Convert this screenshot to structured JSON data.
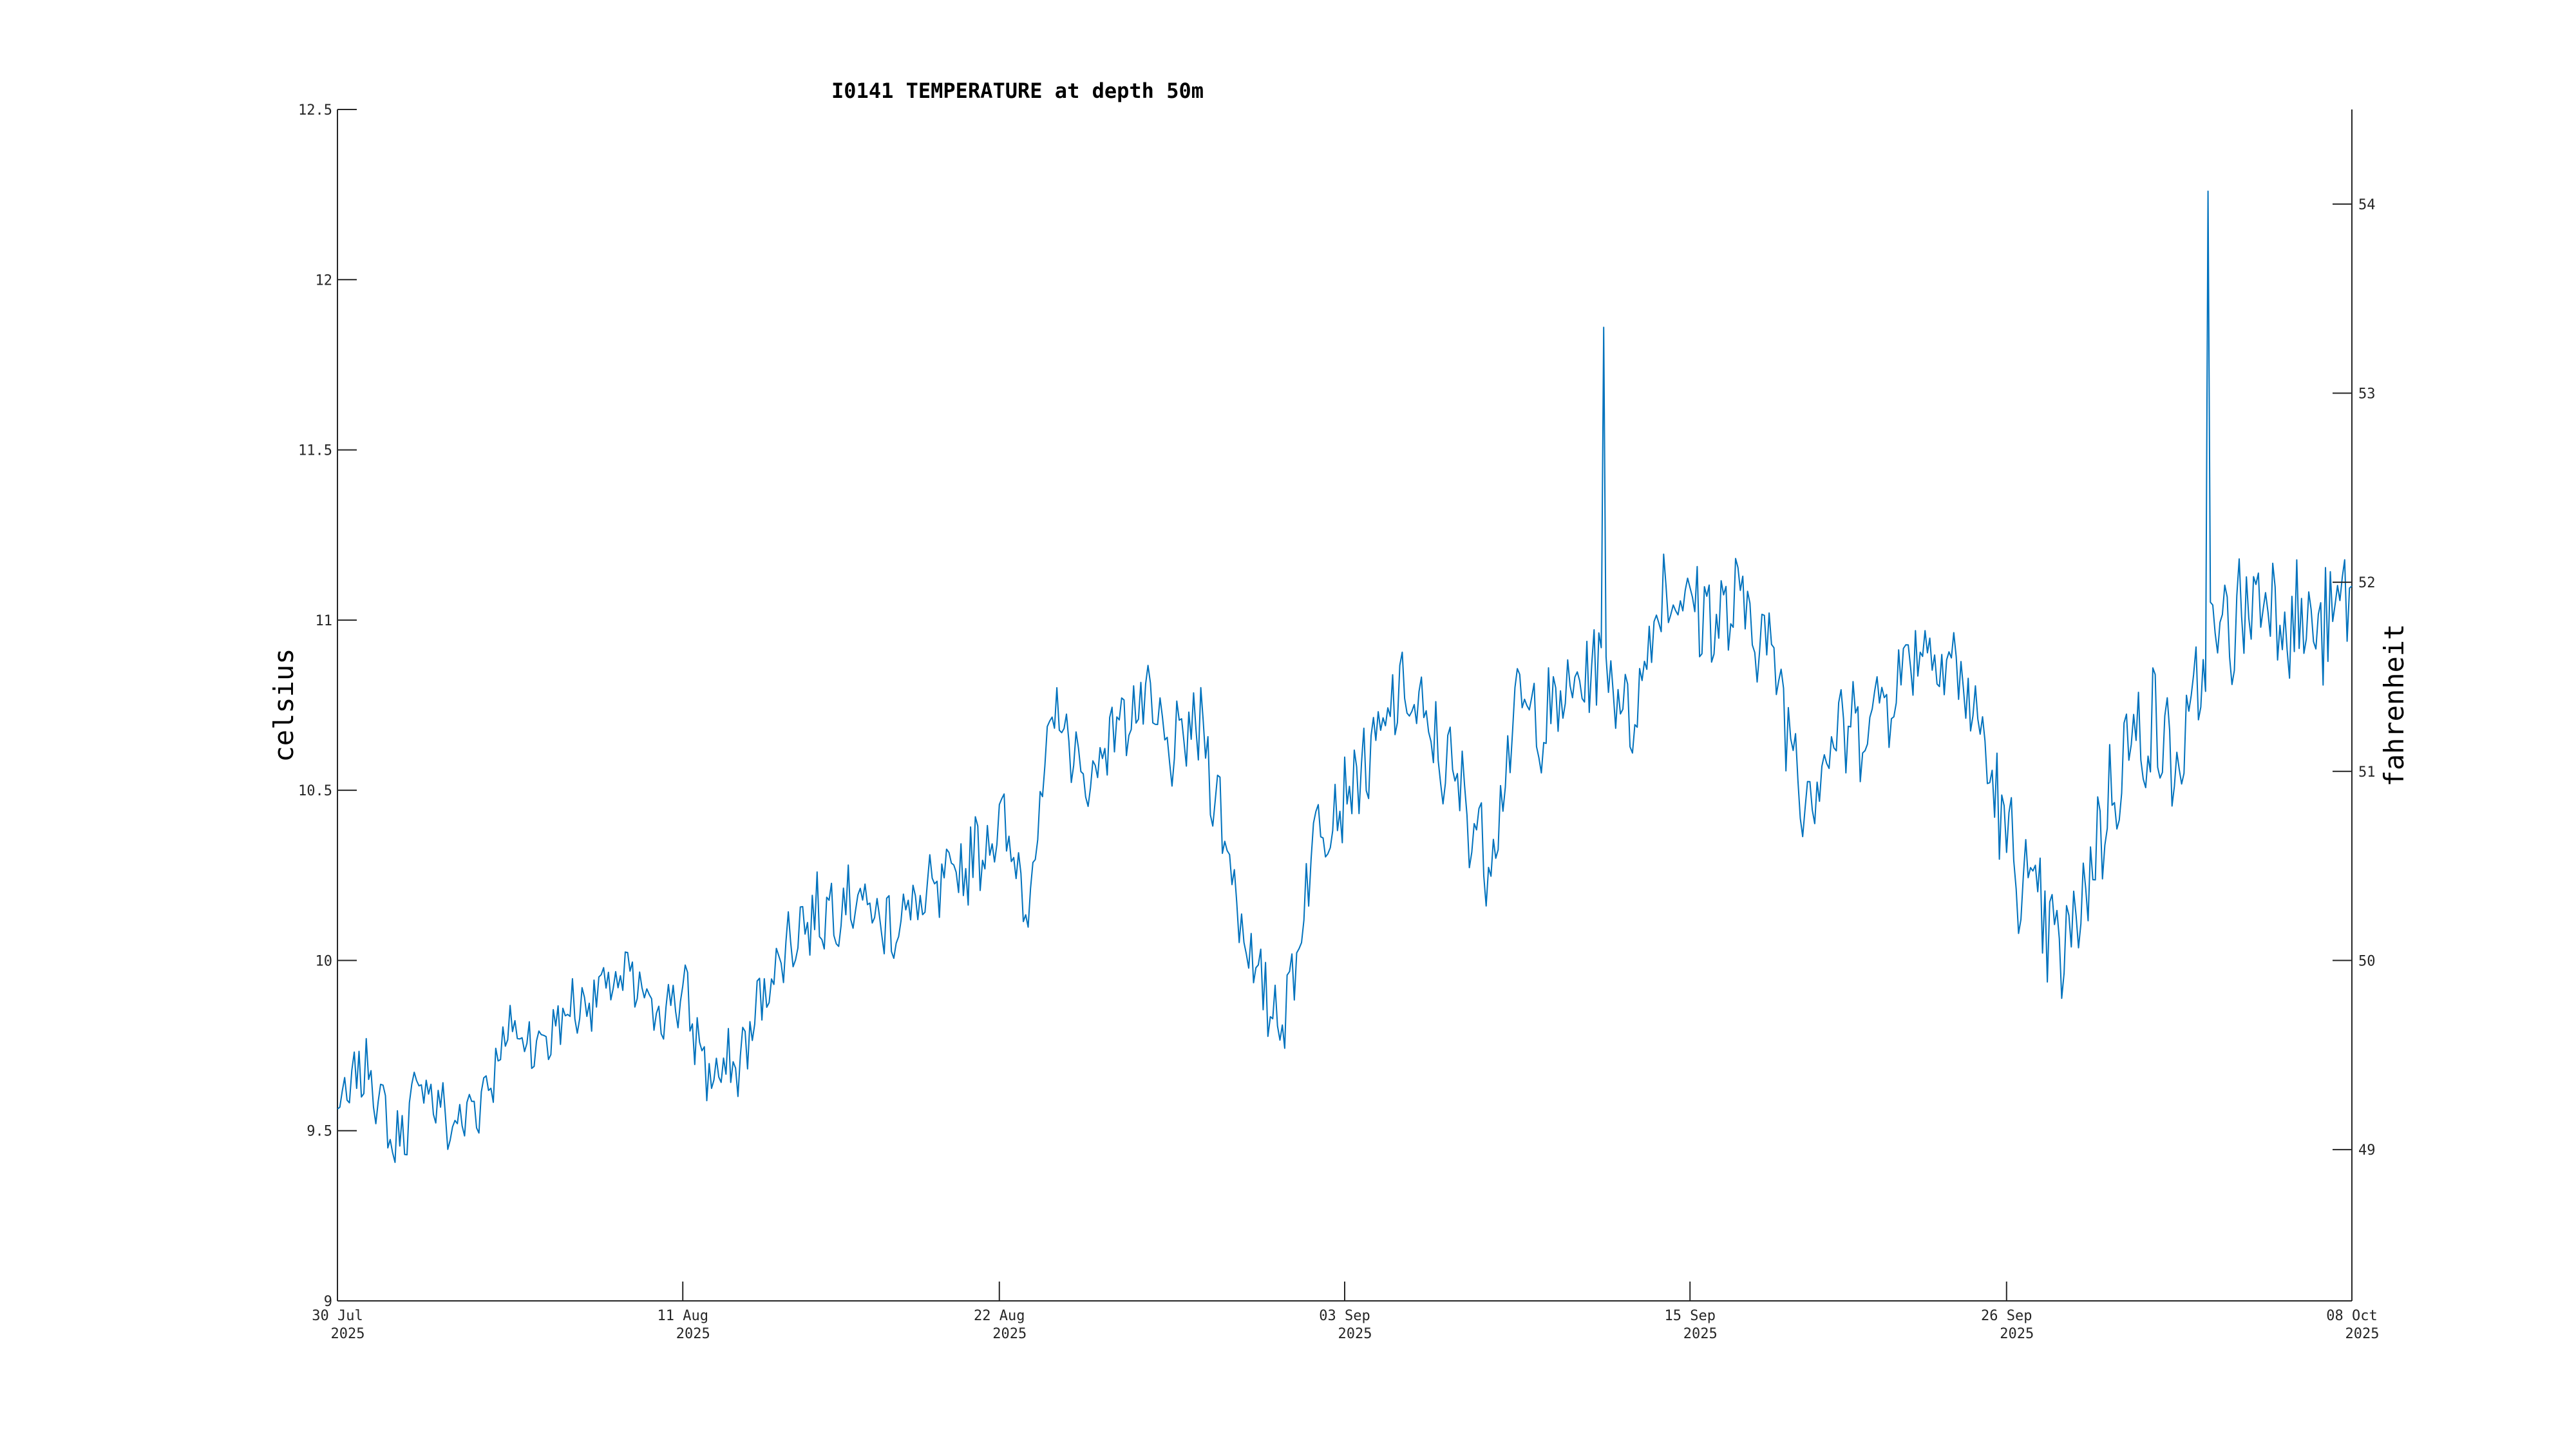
{
  "chart_data": {
    "type": "line",
    "title": "I0141 TEMPERATURE at depth 50m",
    "ylabel": "celsius",
    "ylabel_right": "fahrenheit",
    "xlabel": "",
    "ylim": [
      9,
      12.5
    ],
    "ylim_right": [
      48.2,
      54.5
    ],
    "xlim": [
      "2025-07-30",
      "2025-10-08"
    ],
    "grid": false,
    "y_ticks": [
      "9",
      "9.5",
      "10",
      "10.5",
      "11",
      "11.5",
      "12",
      "12.5"
    ],
    "y_ticks_right": [
      "49",
      "50",
      "51",
      "52",
      "53",
      "54"
    ],
    "x_ticks": [
      {
        "date": "2025-07-30",
        "line1": "30 Jul",
        "line2": "2025"
      },
      {
        "date": "2025-08-11",
        "line1": "11 Aug",
        "line2": "2025"
      },
      {
        "date": "2025-08-22",
        "line1": "22 Aug",
        "line2": "2025"
      },
      {
        "date": "2025-09-03",
        "line1": "03 Sep",
        "line2": "2025"
      },
      {
        "date": "2025-09-15",
        "line1": "15 Sep",
        "line2": "2025"
      },
      {
        "date": "2025-09-26",
        "line1": "26 Sep",
        "line2": "2025"
      },
      {
        "date": "2025-10-08",
        "line1": "08 Oct",
        "line2": "2025"
      }
    ],
    "colors": {
      "series": "#0072BD",
      "axes": "#262626"
    },
    "series": [
      {
        "x": [
          "2025-07-30",
          "2025-07-31",
          "2025-08-01",
          "2025-08-02",
          "2025-08-03",
          "2025-08-04",
          "2025-08-05",
          "2025-08-06",
          "2025-08-07",
          "2025-08-08",
          "2025-08-09",
          "2025-08-10",
          "2025-08-11",
          "2025-08-12",
          "2025-08-13",
          "2025-08-14",
          "2025-08-15",
          "2025-08-16",
          "2025-08-17",
          "2025-08-18",
          "2025-08-19",
          "2025-08-20",
          "2025-08-21",
          "2025-08-22",
          "2025-08-23",
          "2025-08-24",
          "2025-08-25",
          "2025-08-26",
          "2025-08-27",
          "2025-08-28",
          "2025-08-29",
          "2025-08-30",
          "2025-08-31",
          "2025-09-01",
          "2025-09-02",
          "2025-09-03",
          "2025-09-04",
          "2025-09-05",
          "2025-09-06",
          "2025-09-07",
          "2025-09-08",
          "2025-09-09",
          "2025-09-10",
          "2025-09-11",
          "2025-09-12",
          "2025-09-13",
          "2025-09-14",
          "2025-09-15",
          "2025-09-16",
          "2025-09-17",
          "2025-09-18",
          "2025-09-19",
          "2025-09-20",
          "2025-09-21",
          "2025-09-22",
          "2025-09-23",
          "2025-09-24",
          "2025-09-25",
          "2025-09-26",
          "2025-09-27",
          "2025-09-28",
          "2025-09-29",
          "2025-09-30",
          "2025-10-01",
          "2025-10-02",
          "2025-10-03",
          "2025-10-04",
          "2025-10-05",
          "2025-10-06",
          "2025-10-07",
          "2025-10-08"
        ],
        "y": [
          9.55,
          9.7,
          9.45,
          9.65,
          9.5,
          9.6,
          9.8,
          9.75,
          9.85,
          9.9,
          9.95,
          9.85,
          9.9,
          9.65,
          9.7,
          9.95,
          10.1,
          10.15,
          10.2,
          10.1,
          10.15,
          10.2,
          10.3,
          10.4,
          10.2,
          10.75,
          10.5,
          10.7,
          10.75,
          10.6,
          10.7,
          10.3,
          9.9,
          9.85,
          10.4,
          10.5,
          10.6,
          10.8,
          10.65,
          10.5,
          10.3,
          10.75,
          10.7,
          10.8,
          10.9,
          10.7,
          11.1,
          11.05,
          11.0,
          11.05,
          10.85,
          10.5,
          10.65,
          10.7,
          10.8,
          10.95,
          10.9,
          10.7,
          10.35,
          10.15,
          10.0,
          10.3,
          10.6,
          10.7,
          10.55,
          10.9,
          11.0,
          11.1,
          11.0,
          10.95,
          11.1
        ],
        "peaks": [
          {
            "x": "2025-09-12",
            "y": 11.86
          },
          {
            "x": "2025-10-03",
            "y": 12.26
          }
        ]
      }
    ]
  }
}
